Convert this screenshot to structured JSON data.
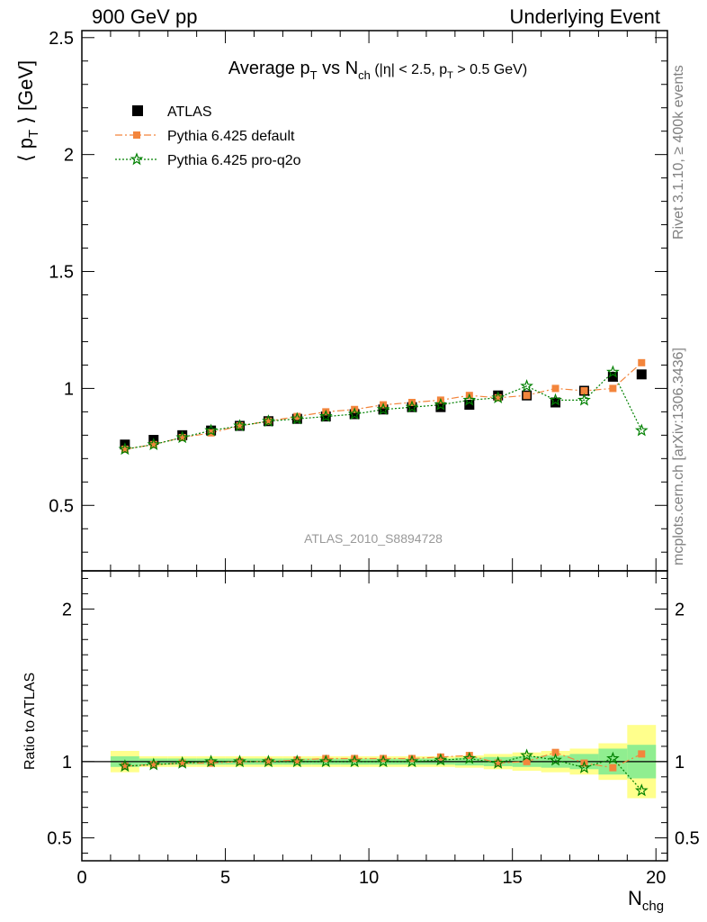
{
  "header": {
    "left": "900 GeV pp",
    "right": "Underlying Event"
  },
  "sidebar": {
    "rivet": "Rivet 3.1.10, ≥ 400k events",
    "mcplots": "mcplots.cern.ch [arXiv:1306.3436]"
  },
  "chart_data": [
    {
      "type": "scatter",
      "title": "Average pT vs Nch (|η| < 2.5, pT > 0.5 GeV)",
      "ylabel": "⟨ pT ⟩ [GeV]",
      "xlabel": "Nchg",
      "watermark": "ATLAS_2010_S8894728",
      "xlim": [
        0,
        20.4
      ],
      "ylim": [
        0.22,
        2.53
      ],
      "yticks": [
        0.5,
        1,
        1.5,
        2,
        2.5
      ],
      "ytick_labels": [
        "0.5",
        "1",
        "1.5",
        "2",
        "2.5"
      ],
      "legend_position": "top-left",
      "x": [
        1.5,
        2.5,
        3.5,
        4.5,
        5.5,
        6.5,
        7.5,
        8.5,
        9.5,
        10.5,
        11.5,
        12.5,
        13.5,
        14.5,
        15.5,
        16.5,
        17.5,
        18.5,
        19.5
      ],
      "series": [
        {
          "name": "ATLAS",
          "color": "#000000",
          "marker": "square",
          "values": [
            0.76,
            0.78,
            0.8,
            0.82,
            0.84,
            0.86,
            0.87,
            0.88,
            0.89,
            0.91,
            0.92,
            0.92,
            0.93,
            0.97,
            0.97,
            0.94,
            0.99,
            1.05,
            1.06
          ]
        },
        {
          "name": "Pythia 6.425 default",
          "color": "#f3853c",
          "marker": "filled-square",
          "line": "dash-dot",
          "values": [
            0.74,
            0.76,
            0.79,
            0.81,
            0.84,
            0.86,
            0.88,
            0.9,
            0.91,
            0.93,
            0.94,
            0.95,
            0.97,
            0.96,
            0.97,
            1.0,
            0.99,
            1.0,
            1.11
          ]
        },
        {
          "name": "Pythia 6.425 pro-q2o",
          "color": "#008000",
          "marker": "star",
          "line": "dotted",
          "values": [
            0.74,
            0.76,
            0.79,
            0.82,
            0.84,
            0.86,
            0.87,
            0.88,
            0.89,
            0.91,
            0.92,
            0.93,
            0.95,
            0.96,
            1.01,
            0.95,
            0.95,
            1.07,
            0.82
          ]
        }
      ]
    },
    {
      "type": "scatter",
      "ylabel": "Ratio to ATLAS",
      "xlabel": "Nchg",
      "xlim": [
        0,
        20.4
      ],
      "ylim": [
        0.35,
        2.25
      ],
      "yticks": [
        0.5,
        1,
        2
      ],
      "ytick_labels": [
        "0.5",
        "1",
        "2"
      ],
      "xticks": [
        0,
        5,
        10,
        15,
        20
      ],
      "xtick_labels": [
        "0",
        "5",
        "10",
        "15",
        "20"
      ],
      "x": [
        1.5,
        2.5,
        3.5,
        4.5,
        5.5,
        6.5,
        7.5,
        8.5,
        9.5,
        10.5,
        11.5,
        12.5,
        13.5,
        14.5,
        15.5,
        16.5,
        17.5,
        18.5,
        19.5
      ],
      "band_inner_halfwidth": [
        0.035,
        0.02,
        0.02,
        0.02,
        0.02,
        0.02,
        0.02,
        0.02,
        0.02,
        0.02,
        0.02,
        0.02,
        0.025,
        0.03,
        0.035,
        0.04,
        0.05,
        0.085,
        0.11
      ],
      "band_outer_halfwidth": [
        0.07,
        0.035,
        0.035,
        0.035,
        0.035,
        0.035,
        0.035,
        0.035,
        0.035,
        0.035,
        0.035,
        0.035,
        0.04,
        0.05,
        0.06,
        0.07,
        0.085,
        0.12,
        0.24
      ],
      "band_inner_color": "#90ee90",
      "band_outer_color": "#ffff8c",
      "series": [
        {
          "name": "Pythia 6.425 default",
          "color": "#f3853c",
          "values": [
            0.97,
            0.98,
            0.99,
            0.99,
            1.0,
            1.0,
            1.01,
            1.02,
            1.02,
            1.02,
            1.02,
            1.03,
            1.04,
            0.99,
            1.0,
            1.06,
            0.99,
            0.96,
            1.05
          ]
        },
        {
          "name": "Pythia 6.425 pro-q2o",
          "color": "#008000",
          "values": [
            0.97,
            0.98,
            0.99,
            1.0,
            1.0,
            1.0,
            1.0,
            1.0,
            1.0,
            1.0,
            1.0,
            1.01,
            1.02,
            0.99,
            1.04,
            1.01,
            0.96,
            1.02,
            0.81
          ]
        }
      ]
    }
  ]
}
